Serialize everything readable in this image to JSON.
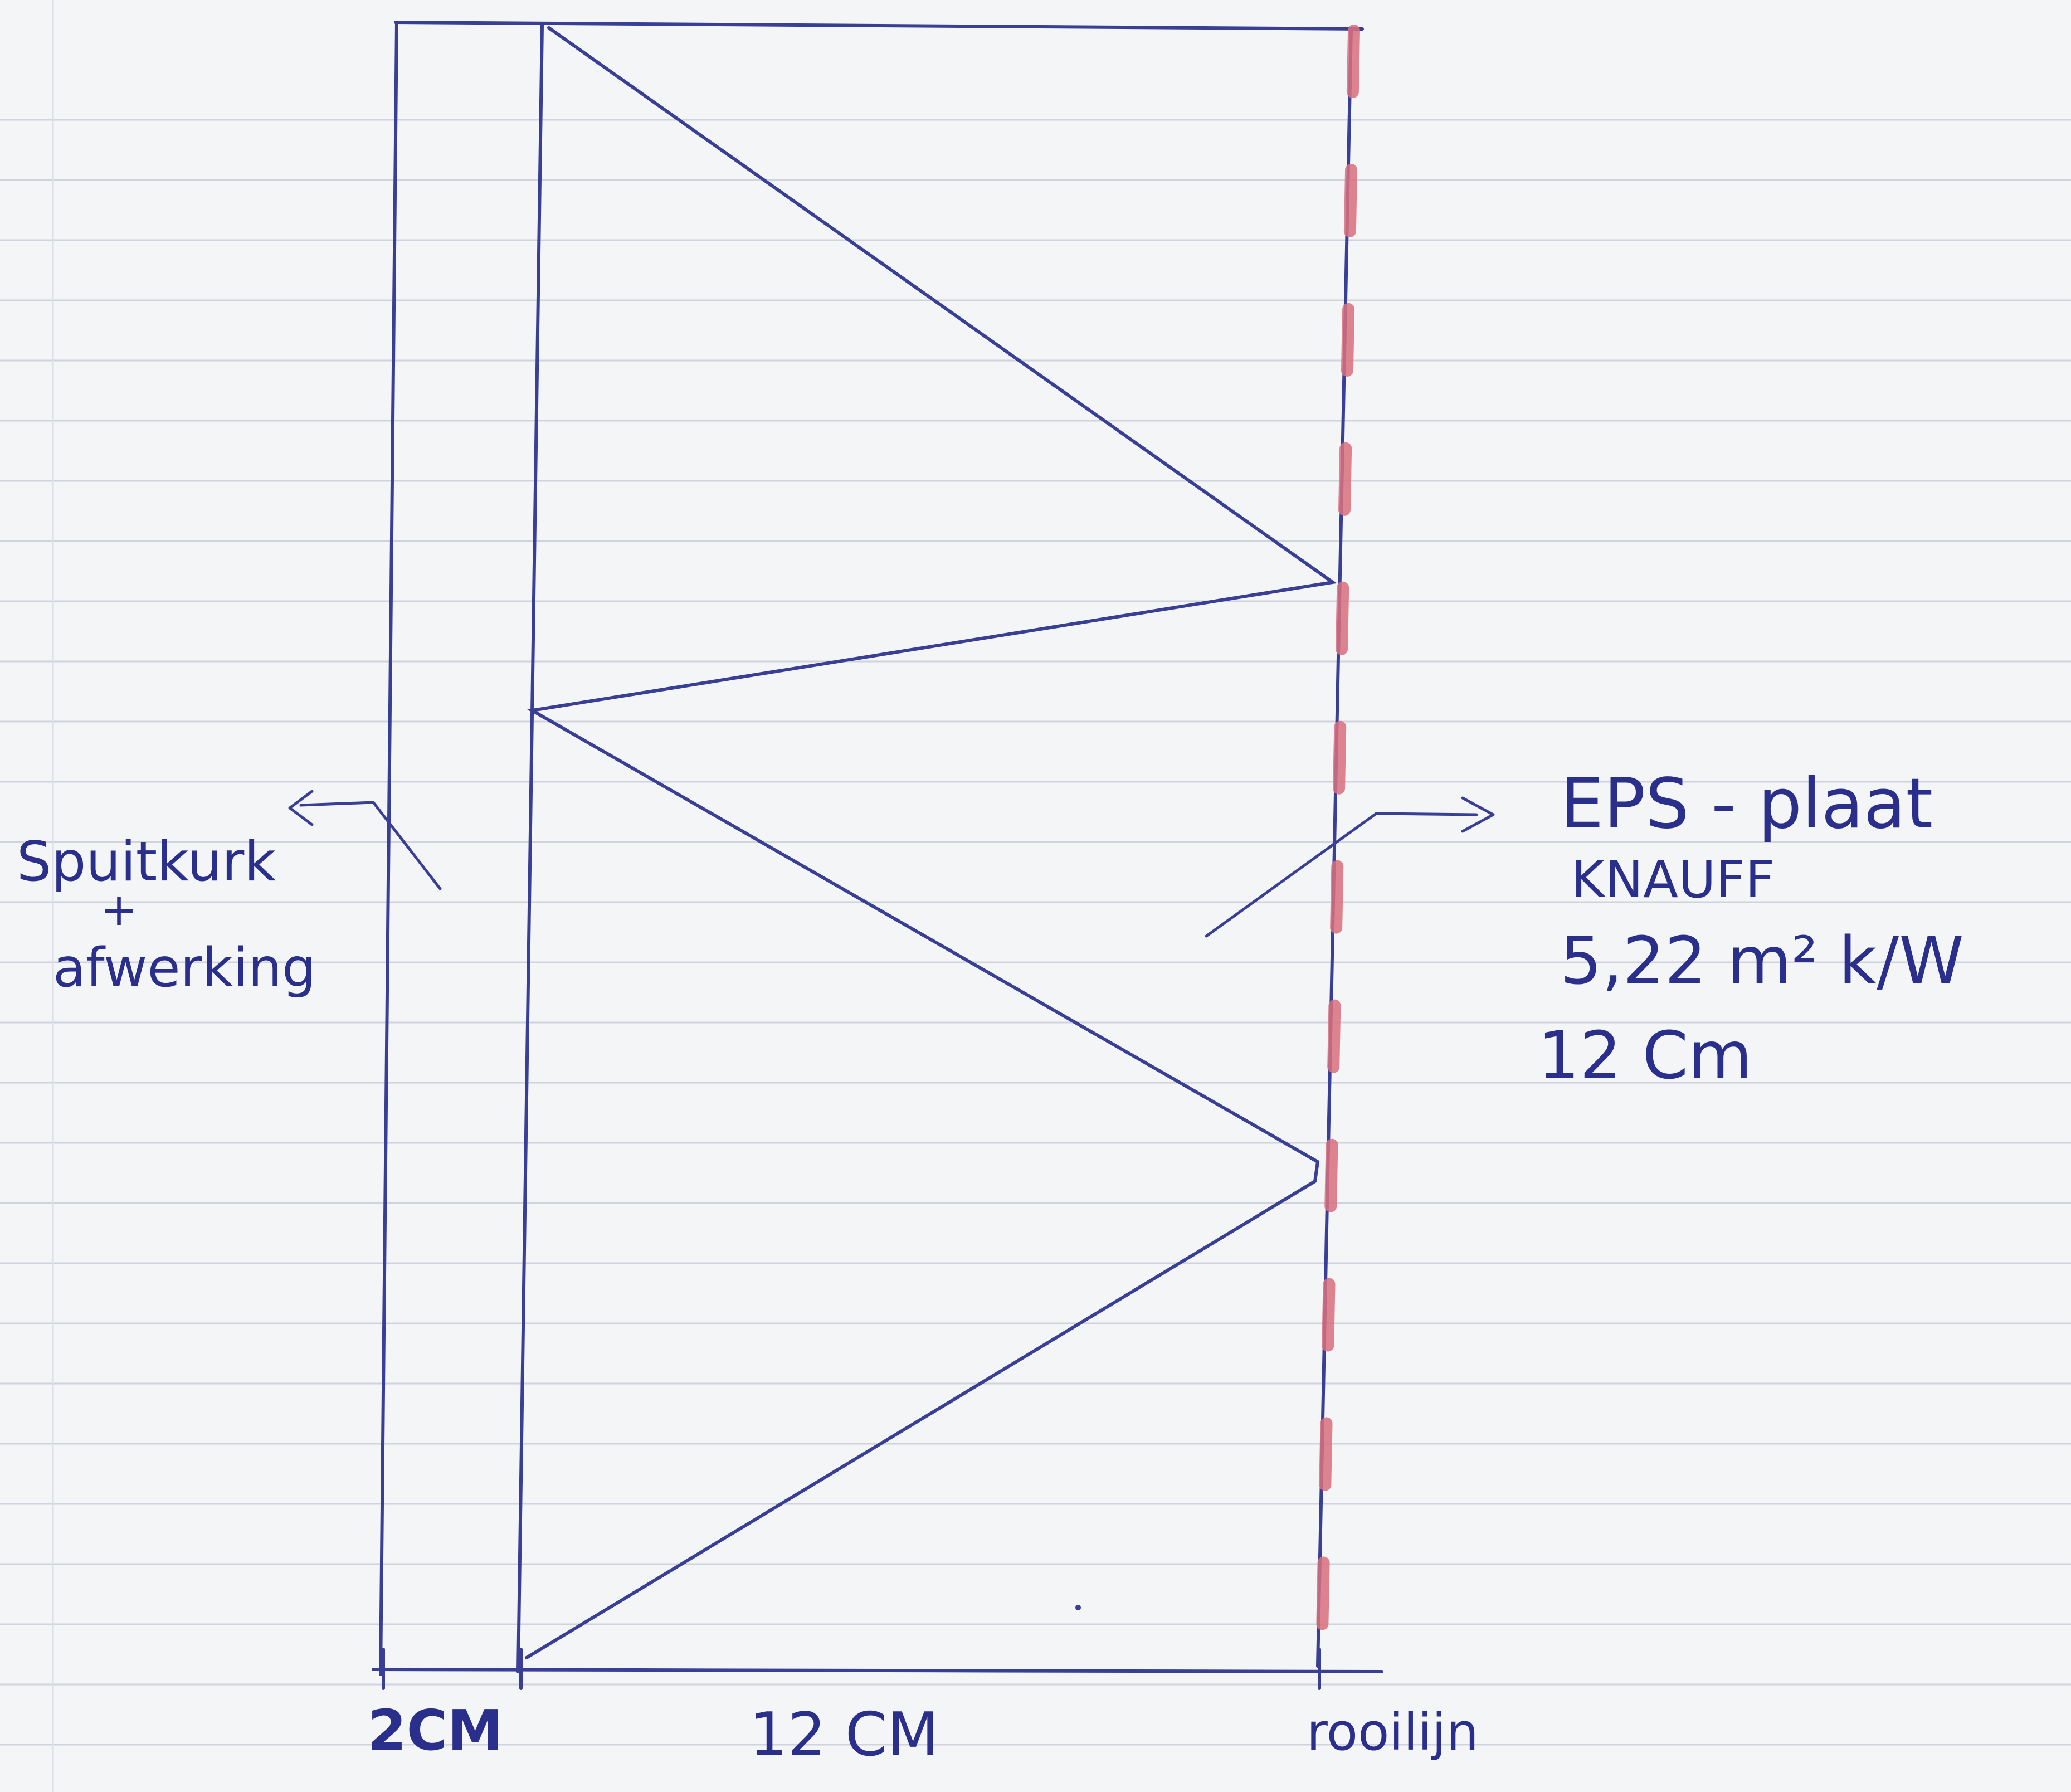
{
  "sheet": {
    "paper_color": "#f4f5f6",
    "rule_color": "#cfd4dc",
    "margin_rule_color": "#dde0e6"
  },
  "colors": {
    "pen": "#3a3f96",
    "pen_text": "#2a2f8c",
    "red_marker": "#d9707f"
  },
  "labels": {
    "left_layer_name": "Spuitkurk",
    "left_layer_plus": "+",
    "left_layer_finish": "afwerking",
    "right_layer_name": "EPS - plaat",
    "right_layer_brand": "KNAUFF",
    "right_layer_rvalue": "5,22 m² k/W",
    "right_layer_thickness": "12 Cm"
  },
  "dimensions": {
    "left_width": "2CM",
    "insulation_width": "12 CM",
    "boundary": "rooilijn"
  }
}
